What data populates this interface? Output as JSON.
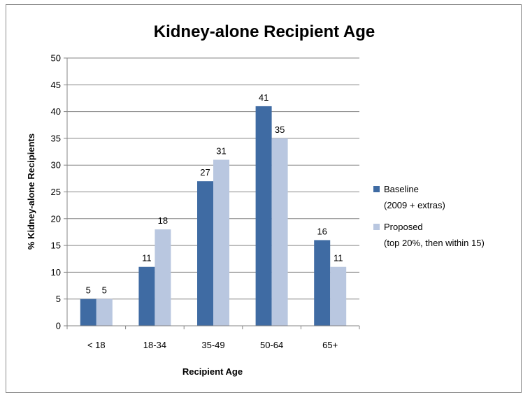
{
  "chart_data": {
    "type": "bar",
    "title": "Kidney-alone Recipient Age",
    "xlabel": "Recipient Age",
    "ylabel": "% Kidney-alone Recipients",
    "categories": [
      "< 18",
      "18-34",
      "35-49",
      "50-64",
      "65+"
    ],
    "ylim": [
      0,
      50
    ],
    "yticks": [
      0,
      5,
      10,
      15,
      20,
      25,
      30,
      35,
      40,
      45,
      50
    ],
    "grid": true,
    "legend_position": "right",
    "series": [
      {
        "name": "Baseline",
        "name_line2": "(2009 + extras)",
        "values": [
          5,
          11,
          27,
          41,
          16
        ],
        "color": "#3f6ba3"
      },
      {
        "name": "Proposed",
        "name_line2": "(top 20%, then within 15)",
        "values": [
          5,
          18,
          31,
          35,
          11
        ],
        "color": "#b9c7e0"
      }
    ]
  }
}
